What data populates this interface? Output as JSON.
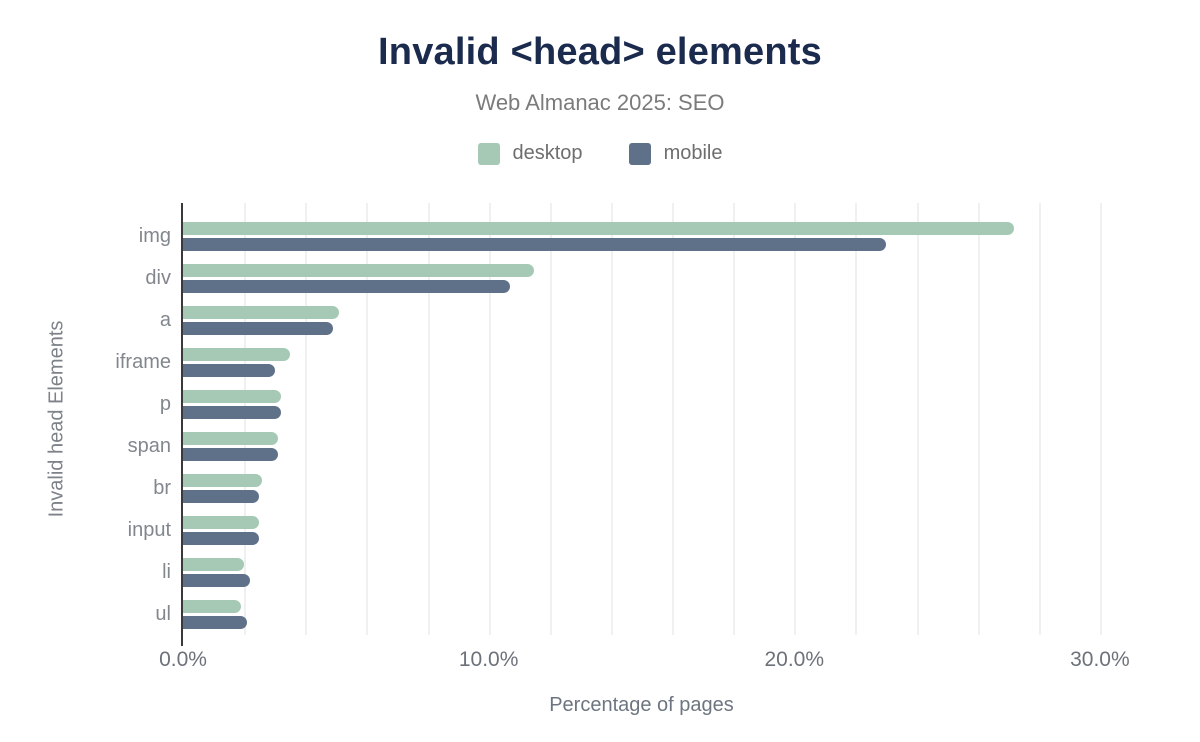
{
  "colors": {
    "background": "#ffffff",
    "title": "#1b2b4d",
    "subtitle": "#7b7b7b",
    "axis_line": "#3a3a3e",
    "gridline": "#f0f0f0",
    "tick_label": "#6d727a",
    "category_label": "#82878e"
  },
  "chart_data": {
    "type": "bar",
    "orientation": "horizontal",
    "title": "Invalid <head> elements",
    "subtitle": "Web Almanac 2025: SEO",
    "xlabel": "Percentage of pages",
    "ylabel": "Invalid head Elements",
    "xlim": [
      0,
      32
    ],
    "grid": "vertical",
    "grid_step_pct": 2,
    "grid_max_pct": 30,
    "legend_position": "top",
    "categories": [
      "img",
      "div",
      "a",
      "iframe",
      "p",
      "span",
      "br",
      "input",
      "li",
      "ul"
    ],
    "series": [
      {
        "name": "desktop",
        "color": "#a5c9b5",
        "values": [
          27.2,
          11.5,
          5.1,
          3.5,
          3.2,
          3.1,
          2.6,
          2.5,
          2.0,
          1.9
        ]
      },
      {
        "name": "mobile",
        "color": "#5f7189",
        "values": [
          23.0,
          10.7,
          4.9,
          3.0,
          3.2,
          3.1,
          2.5,
          2.5,
          2.2,
          2.1
        ]
      }
    ],
    "xticks": [
      {
        "value": 0,
        "label": "0.0%"
      },
      {
        "value": 10,
        "label": "10.0%"
      },
      {
        "value": 20,
        "label": "20.0%"
      },
      {
        "value": 30,
        "label": "30.0%"
      }
    ]
  }
}
